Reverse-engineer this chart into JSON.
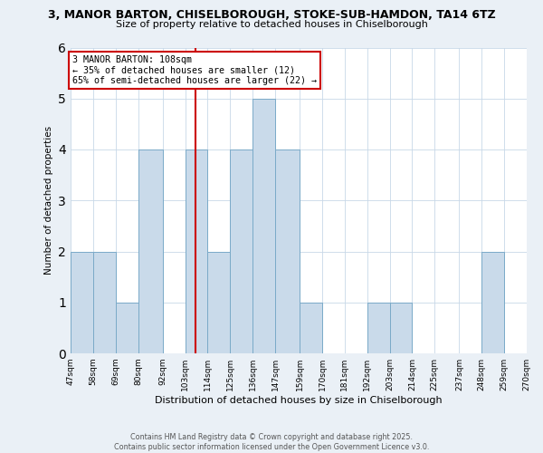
{
  "title": "3, MANOR BARTON, CHISELBOROUGH, STOKE-SUB-HAMDON, TA14 6TZ",
  "subtitle": "Size of property relative to detached houses in Chiselborough",
  "xlabel": "Distribution of detached houses by size in Chiselborough",
  "ylabel": "Number of detached properties",
  "bin_edges": [
    47,
    58,
    69,
    80,
    92,
    103,
    114,
    125,
    136,
    147,
    159,
    170,
    181,
    192,
    203,
    214,
    225,
    237,
    248,
    259,
    270
  ],
  "bar_heights": [
    2,
    2,
    1,
    4,
    0,
    4,
    2,
    4,
    5,
    4,
    1,
    0,
    0,
    1,
    1,
    0,
    0,
    0,
    2,
    0
  ],
  "bar_color": "#c9daea",
  "bar_edgecolor": "#7aaac8",
  "grid_color": "#c8d8e8",
  "property_size": 108,
  "property_line_color": "#cc0000",
  "annotation_text": "3 MANOR BARTON: 108sqm\n← 35% of detached houses are smaller (12)\n65% of semi-detached houses are larger (22) →",
  "annotation_box_edgecolor": "#cc0000",
  "ylim": [
    0,
    6
  ],
  "yticks": [
    0,
    1,
    2,
    3,
    4,
    5,
    6
  ],
  "tick_labels": [
    "47sqm",
    "58sqm",
    "69sqm",
    "80sqm",
    "92sqm",
    "103sqm",
    "114sqm",
    "125sqm",
    "136sqm",
    "147sqm",
    "159sqm",
    "170sqm",
    "181sqm",
    "192sqm",
    "203sqm",
    "214sqm",
    "225sqm",
    "237sqm",
    "248sqm",
    "259sqm",
    "270sqm"
  ],
  "footer_text": "Contains HM Land Registry data © Crown copyright and database right 2025.\nContains public sector information licensed under the Open Government Licence v3.0.",
  "background_color": "#eaf0f6",
  "plot_bg_color": "#ffffff"
}
